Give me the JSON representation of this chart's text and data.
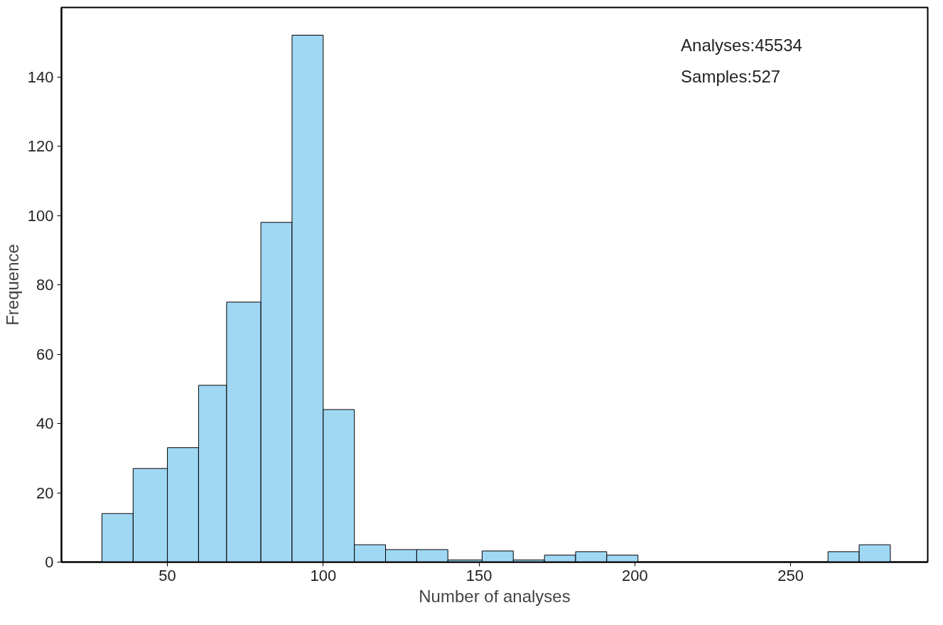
{
  "chart_data": {
    "type": "histogram",
    "xlabel": "Number of analyses",
    "ylabel": "Frequence",
    "bins": [
      29,
      39,
      50,
      60,
      69,
      80,
      90,
      100,
      110,
      120,
      130,
      140,
      151,
      161,
      171,
      181,
      191,
      201,
      262,
      272,
      282
    ],
    "values": [
      14,
      27,
      33,
      51,
      75,
      98,
      152,
      44,
      5,
      3.6,
      3.6,
      0.6,
      3.2,
      0.6,
      2,
      3,
      2,
      0,
      3,
      5
    ],
    "color": "#a0d8f4",
    "xlim": [
      16,
      294
    ],
    "xticks": [
      50,
      100,
      150,
      200,
      250
    ],
    "ylim": [
      0,
      160
    ],
    "yticks": [
      0,
      20,
      40,
      60,
      80,
      100,
      120,
      140
    ],
    "grid": false,
    "annotations": [
      "Analyses:45534",
      "Samples:527"
    ]
  }
}
